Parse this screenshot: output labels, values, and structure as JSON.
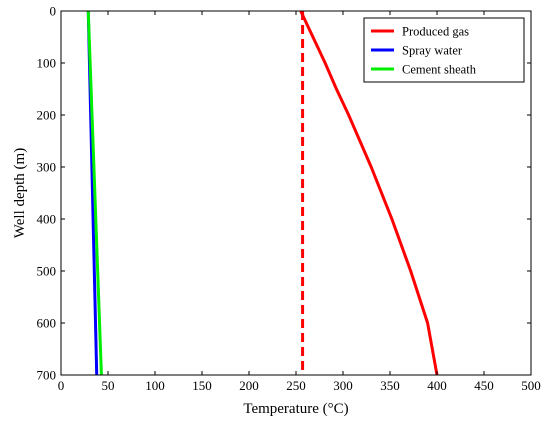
{
  "chart_data": {
    "type": "line",
    "title": "",
    "xlabel": "Temperature (°C)",
    "ylabel": "Well depth  (m)",
    "xlim": [
      0,
      500
    ],
    "ylim": [
      0,
      700
    ],
    "y_inverted": true,
    "x_ticks": [
      0,
      50,
      100,
      150,
      200,
      250,
      300,
      350,
      400,
      450,
      500
    ],
    "y_ticks": [
      0,
      100,
      200,
      300,
      400,
      500,
      600,
      700
    ],
    "grid": false,
    "legend_position": "top-right",
    "series": [
      {
        "name": "Produced gas",
        "color": "#ff0000",
        "style": "solid",
        "points": [
          [
            255,
            0
          ],
          [
            268,
            50
          ],
          [
            281,
            100
          ],
          [
            293,
            150
          ],
          [
            306,
            200
          ],
          [
            318,
            250
          ],
          [
            330,
            300
          ],
          [
            341,
            350
          ],
          [
            352,
            400
          ],
          [
            362,
            450
          ],
          [
            372,
            500
          ],
          [
            381,
            550
          ],
          [
            390,
            600
          ],
          [
            395,
            650
          ],
          [
            400,
            700
          ]
        ]
      },
      {
        "name": "Spray water",
        "color": "#0000ff",
        "style": "solid",
        "points": [
          [
            29,
            0
          ],
          [
            38,
            700
          ]
        ]
      },
      {
        "name": "Cement sheath",
        "color": "#00ee00",
        "style": "solid",
        "points": [
          [
            29,
            0
          ],
          [
            43,
            700
          ]
        ]
      },
      {
        "name": "",
        "color": "#ff0000",
        "style": "dashed",
        "points": [
          [
            257,
            0
          ],
          [
            257,
            700
          ]
        ]
      }
    ]
  }
}
